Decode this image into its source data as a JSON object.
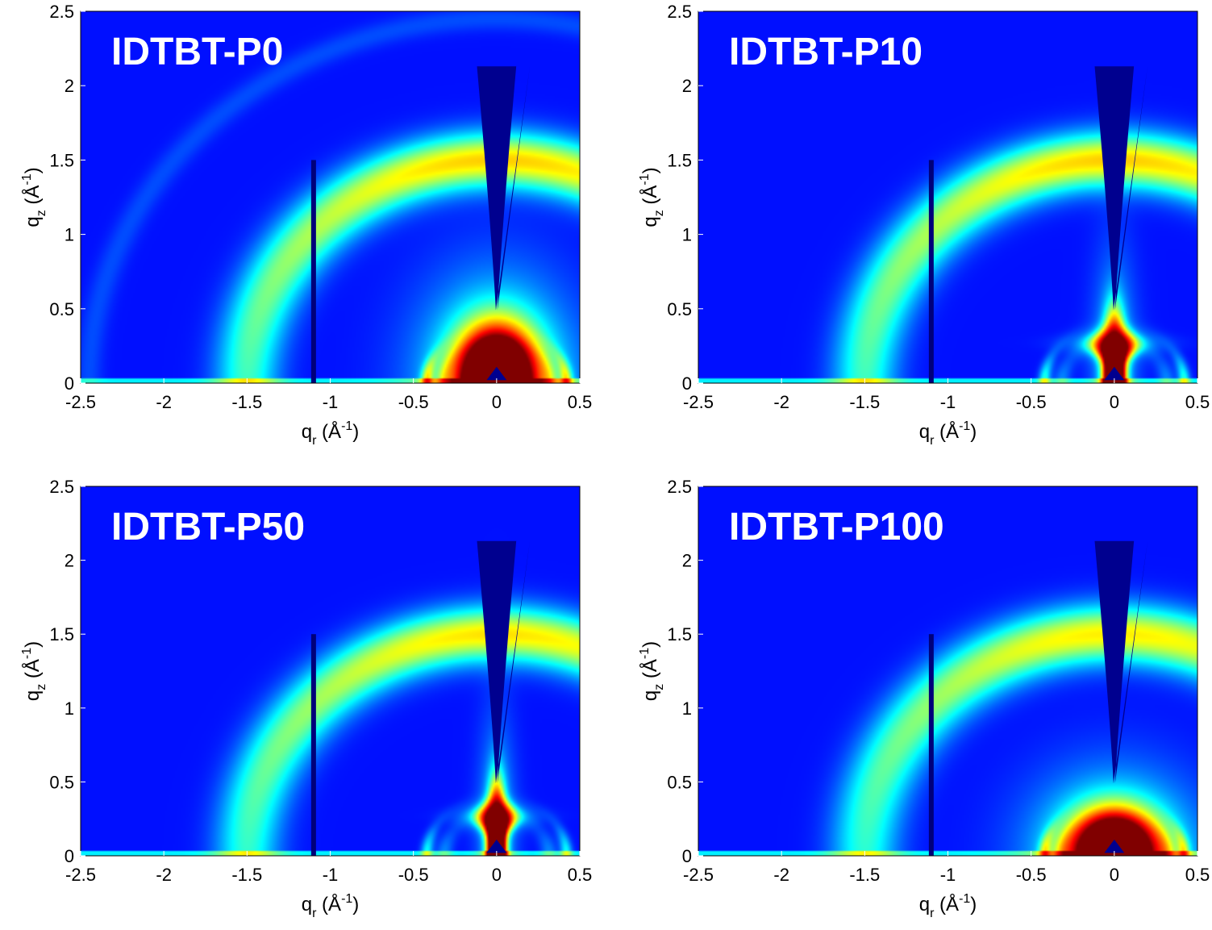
{
  "chart_data": [
    {
      "type": "heatmap",
      "title": "IDTBT-P0",
      "xlabel": "q_r (Å^-1)",
      "ylabel": "q_z (Å^-1)",
      "xlim": [
        -2.5,
        0.5
      ],
      "ylim": [
        0,
        2.5
      ],
      "xticks": [
        "-2.5",
        "-2",
        "-1.5",
        "-1",
        "-0.5",
        "0",
        "0.5"
      ],
      "yticks": [
        "0",
        "0.5",
        "1",
        "1.5",
        "2",
        "2.5"
      ],
      "colormap": "jet",
      "features": {
        "amorphous_ring_q": 1.5,
        "amorphous_ring_width": 0.19,
        "amorphous_ring_intensity": 0.45,
        "inner_ring_q": 0.42,
        "inner_ring_intensity": 0.35,
        "center_blob": {
          "rx": 0.28,
          "ry": 0.42,
          "intensity": 1.0,
          "shape": "dome"
        },
        "outer_faint_ring_q": 2.45,
        "detector_gap_qr": -1.1
      }
    },
    {
      "type": "heatmap",
      "title": "IDTBT-P10",
      "xlabel": "q_r (Å^-1)",
      "ylabel": "q_z (Å^-1)",
      "xlim": [
        -2.5,
        0.5
      ],
      "ylim": [
        0,
        2.5
      ],
      "xticks": [
        "-2.5",
        "-2",
        "-1.5",
        "-1",
        "-0.5",
        "0",
        "0.5"
      ],
      "yticks": [
        "0",
        "0.5",
        "1",
        "1.5",
        "2",
        "2.5"
      ],
      "colormap": "jet",
      "features": {
        "amorphous_ring_q": 1.5,
        "amorphous_ring_width": 0.19,
        "amorphous_ring_intensity": 0.45,
        "inner_ring_q": 0.42,
        "inner_ring_intensity": 0.28,
        "center_blob": {
          "rx": 0.13,
          "ry": 0.45,
          "intensity": 1.0,
          "shape": "hourglass"
        },
        "detector_gap_qr": -1.1
      }
    },
    {
      "type": "heatmap",
      "title": "IDTBT-P50",
      "xlabel": "q_r (Å^-1)",
      "ylabel": "q_z (Å^-1)",
      "xlim": [
        -2.5,
        0.5
      ],
      "ylim": [
        0,
        2.5
      ],
      "xticks": [
        "-2.5",
        "-2",
        "-1.5",
        "-1",
        "-0.5",
        "0",
        "0.5"
      ],
      "yticks": [
        "0",
        "0.5",
        "1",
        "1.5",
        "2",
        "2.5"
      ],
      "colormap": "jet",
      "features": {
        "amorphous_ring_q": 1.5,
        "amorphous_ring_width": 0.19,
        "amorphous_ring_intensity": 0.43,
        "inner_ring_q": 0.42,
        "inner_ring_intensity": 0.25,
        "center_blob": {
          "rx": 0.11,
          "ry": 0.47,
          "intensity": 1.0,
          "shape": "hourglass"
        },
        "detector_gap_qr": -1.1
      }
    },
    {
      "type": "heatmap",
      "title": "IDTBT-P100",
      "xlabel": "q_r (Å^-1)",
      "ylabel": "q_z (Å^-1)",
      "xlim": [
        -2.5,
        0.5
      ],
      "ylim": [
        0,
        2.5
      ],
      "xticks": [
        "-2.5",
        "-2",
        "-1.5",
        "-1",
        "-0.5",
        "0",
        "0.5"
      ],
      "yticks": [
        "0",
        "0.5",
        "1",
        "1.5",
        "2",
        "2.5"
      ],
      "colormap": "jet",
      "features": {
        "amorphous_ring_q": 1.5,
        "amorphous_ring_width": 0.2,
        "amorphous_ring_intensity": 0.42,
        "inner_ring_q": 0.42,
        "inner_ring_intensity": 0.3,
        "center_blob": {
          "rx": 0.3,
          "ry": 0.33,
          "intensity": 1.0,
          "shape": "dome"
        },
        "detector_gap_qr": -1.1
      }
    }
  ]
}
